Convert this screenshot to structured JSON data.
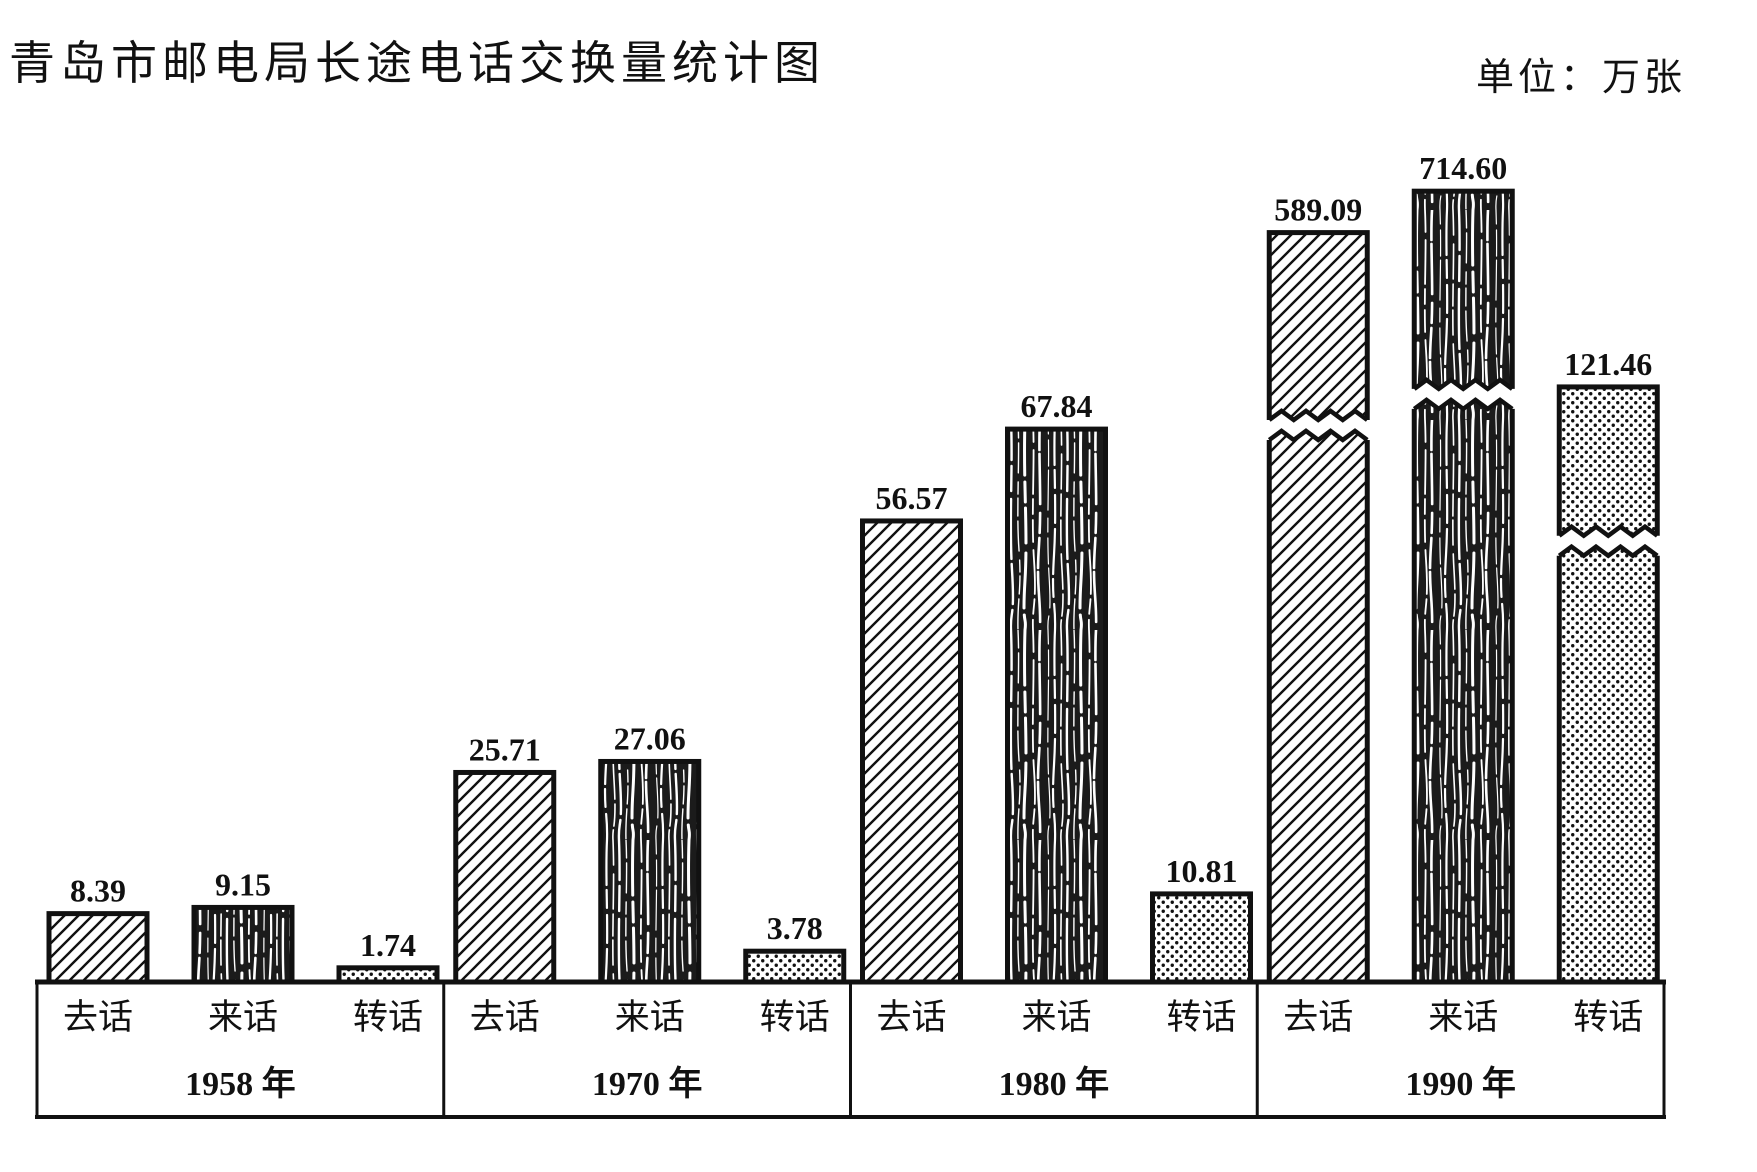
{
  "chart_data": {
    "type": "bar",
    "title": "青岛市邮电局长途电话交换量统计图",
    "unit": "单位：万张",
    "categories": [
      "1958 年",
      "1970 年",
      "1980 年",
      "1990 年"
    ],
    "series": [
      {
        "name": "去话",
        "values": [
          8.39,
          25.71,
          56.57,
          589.09
        ]
      },
      {
        "name": "来话",
        "values": [
          9.15,
          27.06,
          67.84,
          714.6
        ]
      },
      {
        "name": "转话",
        "values": [
          1.74,
          3.78,
          10.81,
          121.46
        ]
      }
    ],
    "broken_bars": [
      false,
      false,
      false,
      true
    ],
    "data_labels": true,
    "legend": "none",
    "grid": false,
    "colors": {
      "ink": "#111111",
      "background": "#ffffff"
    }
  }
}
